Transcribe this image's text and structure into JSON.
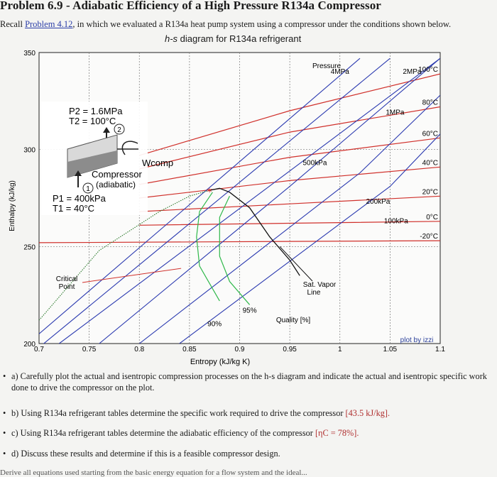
{
  "problem": {
    "title": "Problem 6.9 - Adiabatic Efficiency of a High Pressure R134a Compressor",
    "intro_pre": "Recall ",
    "intro_link": "Problem 4.12",
    "intro_post": ", in which we evaluated a R134a heat pump system using a compressor under the conditions shown below."
  },
  "chart": {
    "title_italic": "h-s",
    "title_rest": " diagram for R134a refrigerant",
    "xlabel": "Entropy (kJ/kg K)",
    "ylabel": "Enthalpy (kJ/kg)",
    "credit": "plot by izzi",
    "pressure_label": "Pressure",
    "quality_label": "Quality [%]",
    "critical_label_1": "Critical",
    "critical_label_2": "Point",
    "sat_vapor_1": "Sat. Vapor",
    "sat_vapor_2": "Line"
  },
  "chart_data": {
    "type": "line",
    "xlim": [
      0.7,
      1.1
    ],
    "ylim": [
      200,
      350
    ],
    "x_ticks": [
      "0.7",
      "0.75",
      "0.8",
      "0.85",
      "0.9",
      "0.95",
      "1",
      "1.05",
      "1.1"
    ],
    "y_ticks": [
      "200",
      "250",
      "300",
      "350"
    ],
    "isobars": [
      {
        "name": "4MPa",
        "points": [
          [
            0.7,
            205
          ],
          [
            1.02,
            347
          ]
        ]
      },
      {
        "name": "2MPa",
        "points": [
          [
            0.7,
            198
          ],
          [
            1.05,
            347
          ]
        ]
      },
      {
        "name": "1MPa",
        "points": [
          [
            0.72,
            200
          ],
          [
            1.1,
            347
          ]
        ]
      },
      {
        "name": "500kPa",
        "points": [
          [
            0.76,
            200
          ],
          [
            0.95,
            281
          ],
          [
            1.1,
            347
          ]
        ]
      },
      {
        "name": "200kPa",
        "points": [
          [
            0.8,
            200
          ],
          [
            1.02,
            288
          ],
          [
            1.1,
            328
          ]
        ]
      },
      {
        "name": "100kPa",
        "points": [
          [
            0.84,
            200
          ],
          [
            1.05,
            281
          ],
          [
            1.1,
            308
          ]
        ]
      }
    ],
    "isotherms": [
      {
        "name": "100°C",
        "points": [
          [
            0.8,
            297
          ],
          [
            0.95,
            320
          ],
          [
            1.1,
            339
          ]
        ]
      },
      {
        "name": "80°C",
        "points": [
          [
            0.8,
            290
          ],
          [
            0.95,
            309
          ],
          [
            1.1,
            322
          ]
        ]
      },
      {
        "name": "60°C",
        "points": [
          [
            0.8,
            282
          ],
          [
            0.95,
            296
          ],
          [
            1.1,
            306
          ]
        ]
      },
      {
        "name": "40°C",
        "points": [
          [
            0.8,
            275
          ],
          [
            0.95,
            284
          ],
          [
            1.1,
            291
          ]
        ]
      },
      {
        "name": "20°C",
        "points": [
          [
            0.8,
            268
          ],
          [
            0.95,
            272
          ],
          [
            1.1,
            276
          ]
        ]
      },
      {
        "name": "0°C",
        "points": [
          [
            0.8,
            261
          ],
          [
            0.95,
            262
          ],
          [
            1.1,
            263
          ]
        ]
      },
      {
        "name": "-20°C",
        "points": [
          [
            0.7,
            252
          ],
          [
            1.1,
            253
          ]
        ]
      }
    ],
    "saturation_dome": [
      [
        0.7,
        212
      ],
      [
        0.76,
        248
      ],
      [
        0.82,
        268
      ],
      [
        0.85,
        276
      ],
      [
        0.87,
        279
      ],
      [
        0.88,
        280
      ],
      [
        0.89,
        278
      ],
      [
        0.91,
        270
      ],
      [
        0.93,
        255
      ],
      [
        0.95,
        243
      ],
      [
        0.96,
        235
      ]
    ],
    "quality_lines": [
      {
        "name": "90%",
        "points": [
          [
            0.873,
            278
          ],
          [
            0.86,
            268
          ],
          [
            0.857,
            255
          ],
          [
            0.86,
            240
          ],
          [
            0.88,
            222
          ]
        ]
      },
      {
        "name": "95%",
        "points": [
          [
            0.89,
            276
          ],
          [
            0.88,
            265
          ],
          [
            0.88,
            245
          ],
          [
            0.89,
            232
          ],
          [
            0.91,
            220
          ]
        ]
      }
    ],
    "critical_point": [
      0.87,
      279
    ],
    "annotations": [
      "Critical Point",
      "Sat. Vapor Line",
      "Quality [%]",
      "90%",
      "95%",
      "4MPa",
      "2MPa",
      "1MPa",
      "500kPa",
      "200kPa",
      "100kPa",
      "100°C",
      "80°C",
      "60°C",
      "40°C",
      "20°C",
      "0°C",
      "-20°C"
    ]
  },
  "compressor": {
    "p2": "P2 = 1.6MPa",
    "t2": "T2 = 100°C",
    "state2": "2",
    "wcomp": "Wcomp",
    "label1": "Compressor",
    "label2": "(adiabatic)",
    "state1": "1",
    "p1": "P1 = 400kPa",
    "t1": "T1 = 40°C"
  },
  "tasks": [
    {
      "bullet": "•",
      "text": "a) Carefully plot the actual and isentropic compression processes on the h-s diagram and indicate the actual and isentropic specific work done to drive the compressor on the plot.",
      "answer": ""
    },
    {
      "bullet": "•",
      "text": "b) Using R134a refrigerant tables determine the specific work required to drive the compressor ",
      "answer": "[43.5 kJ/kg]."
    },
    {
      "bullet": "•",
      "text": "c) Using R134a refrigerant tables determine the adiabatic efficiency of the compressor ",
      "answer": "[ηC = 78%]."
    },
    {
      "bullet": "•",
      "text": "d) Discuss these results and determine if this is a feasible compressor design.",
      "answer": ""
    }
  ],
  "footer_cut": "Derive all equations used starting from the basic energy equation for a flow system and the ideal..."
}
